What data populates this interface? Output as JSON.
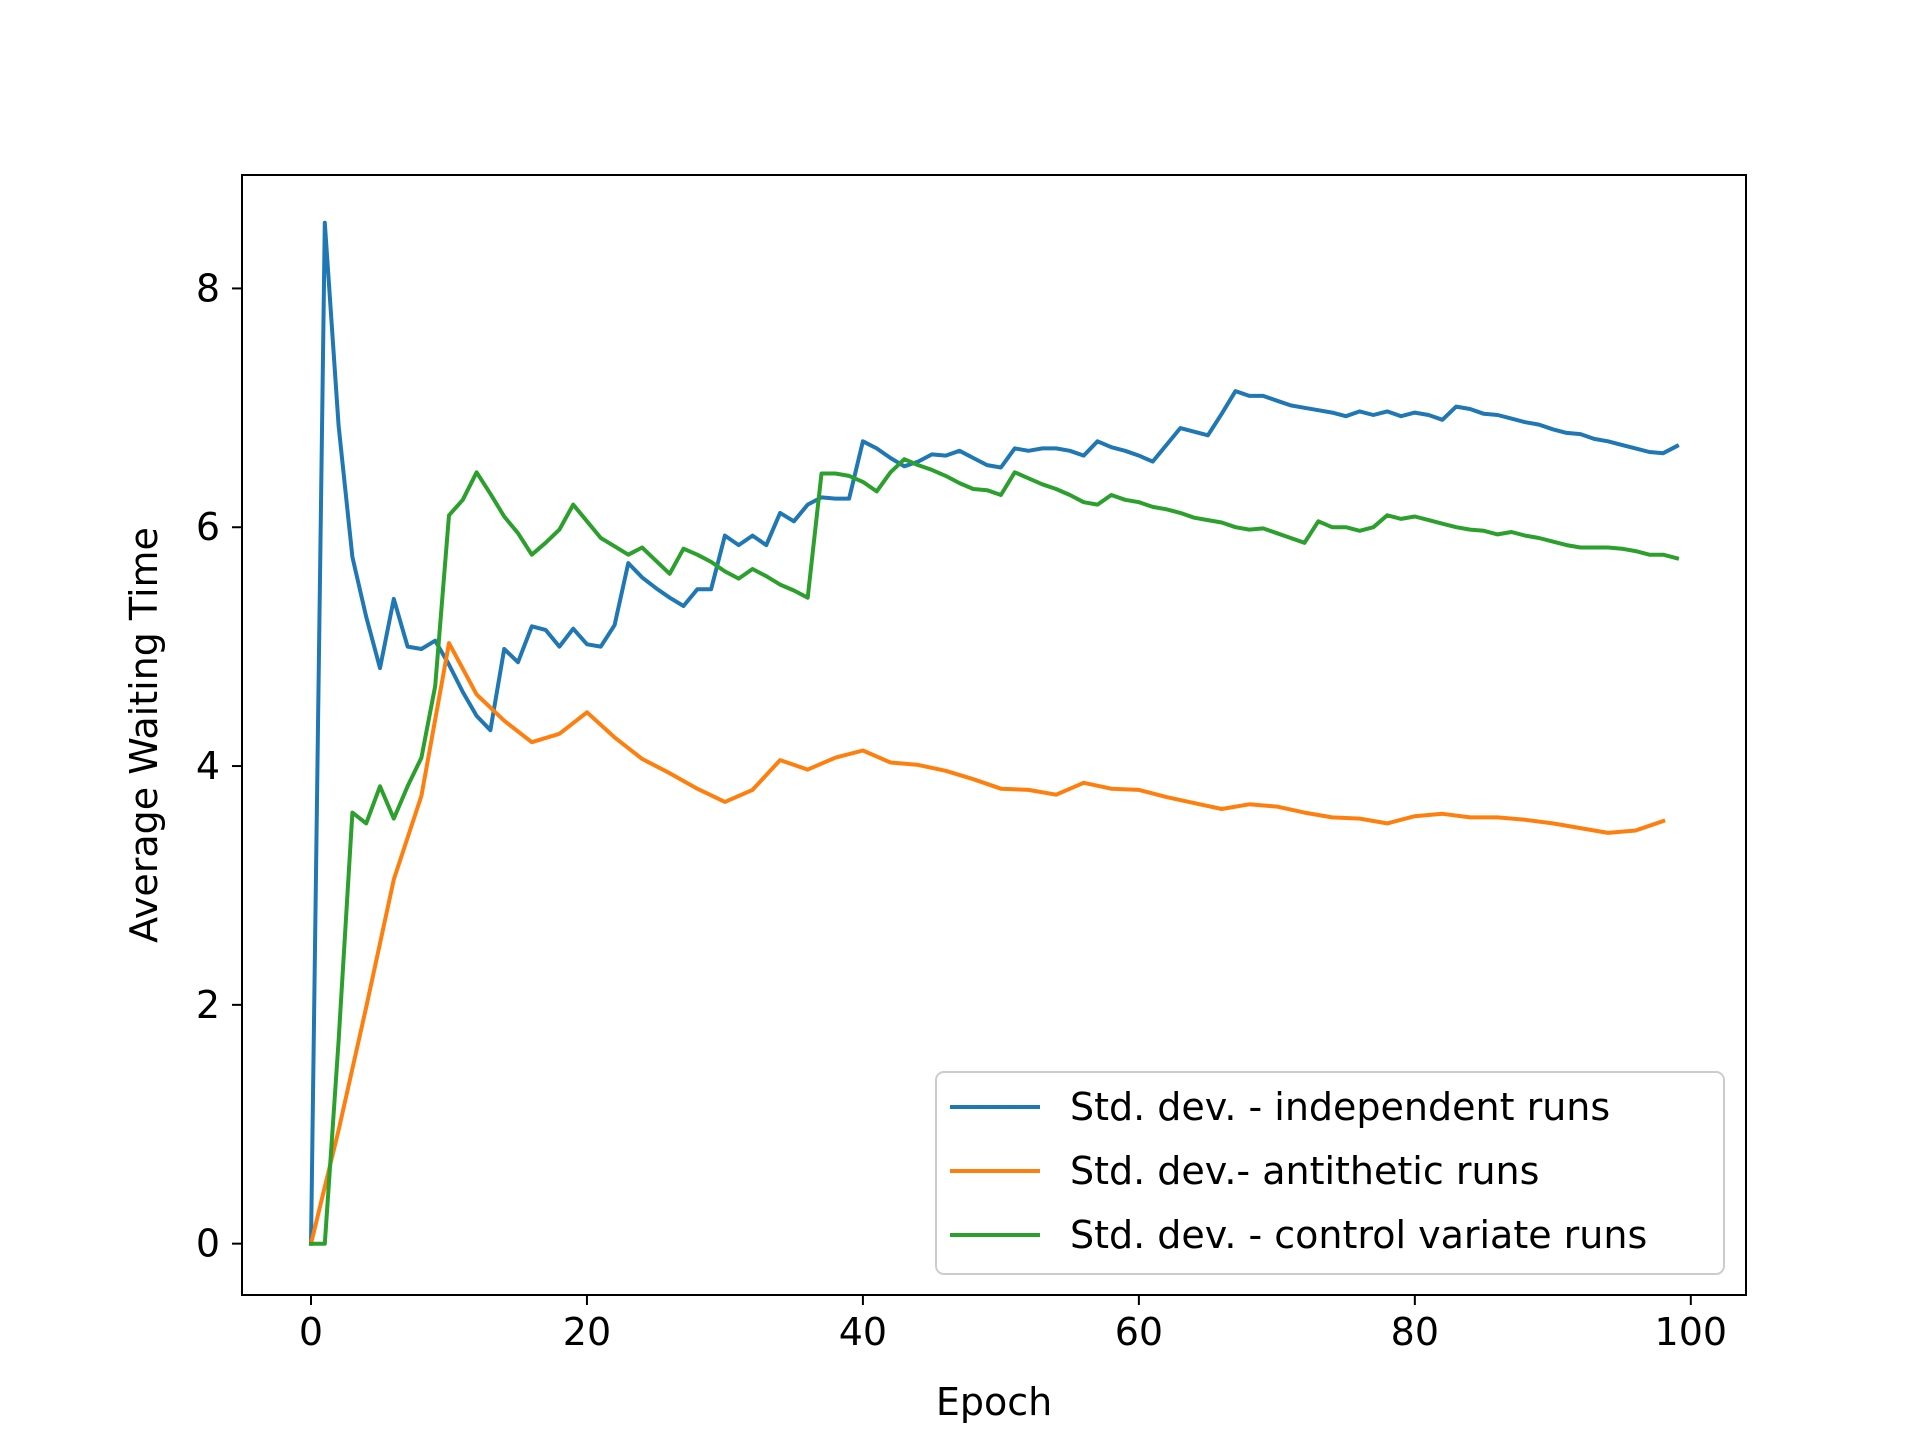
{
  "chart_data": {
    "type": "line",
    "title": "",
    "xlabel": "Epoch",
    "ylabel": "Average Waiting Time",
    "xlim": [
      -5,
      104
    ],
    "ylim": [
      -0.43,
      8.95
    ],
    "xticks": [
      0,
      20,
      40,
      60,
      80,
      100
    ],
    "yticks": [
      0,
      2,
      4,
      6,
      8
    ],
    "xtick_labels": [
      "0",
      "20",
      "40",
      "60",
      "80",
      "100"
    ],
    "ytick_labels": [
      "0",
      "2",
      "4",
      "6",
      "8"
    ],
    "grid": false,
    "legend_position": "lower-right",
    "series": [
      {
        "name": "Std. dev. - independent runs",
        "color": "#1f77b4",
        "x": [
          0,
          1,
          2,
          3,
          4,
          5,
          6,
          7,
          8,
          9,
          10,
          11,
          12,
          13,
          14,
          15,
          16,
          17,
          18,
          19,
          20,
          21,
          22,
          23,
          24,
          25,
          26,
          27,
          28,
          29,
          30,
          31,
          32,
          33,
          34,
          35,
          36,
          37,
          38,
          39,
          40,
          41,
          42,
          43,
          44,
          45,
          46,
          47,
          48,
          49,
          50,
          51,
          52,
          53,
          54,
          55,
          56,
          57,
          58,
          59,
          60,
          61,
          62,
          63,
          64,
          65,
          66,
          67,
          68,
          69,
          70,
          71,
          72,
          73,
          74,
          75,
          76,
          77,
          78,
          79,
          80,
          81,
          82,
          83,
          84,
          85,
          86,
          87,
          88,
          89,
          90,
          91,
          92,
          93,
          94,
          95,
          96,
          97,
          98,
          99
        ],
        "y": [
          0,
          8.55,
          6.85,
          5.75,
          5.25,
          4.82,
          5.4,
          5.0,
          4.98,
          5.05,
          4.85,
          4.62,
          4.42,
          4.3,
          4.98,
          4.87,
          5.17,
          5.14,
          5.0,
          5.15,
          5.02,
          5.0,
          5.18,
          5.7,
          5.58,
          5.49,
          5.41,
          5.34,
          5.48,
          5.48,
          5.93,
          5.85,
          5.93,
          5.85,
          6.12,
          6.05,
          6.19,
          6.25,
          6.24,
          6.24,
          6.72,
          6.66,
          6.58,
          6.51,
          6.55,
          6.61,
          6.6,
          6.64,
          6.58,
          6.52,
          6.5,
          6.66,
          6.64,
          6.66,
          6.66,
          6.64,
          6.6,
          6.72,
          6.67,
          6.64,
          6.6,
          6.55,
          6.69,
          6.83,
          6.8,
          6.77,
          6.95,
          7.14,
          7.1,
          7.1,
          7.06,
          7.02,
          7.0,
          6.98,
          6.96,
          6.93,
          6.97,
          6.94,
          6.97,
          6.93,
          6.96,
          6.94,
          6.9,
          7.01,
          6.99,
          6.95,
          6.94,
          6.91,
          6.88,
          6.86,
          6.82,
          6.79,
          6.78,
          6.74,
          6.72,
          6.69,
          6.66,
          6.63,
          6.62,
          6.68
        ]
      },
      {
        "name": "Std. dev.- antithetic runs",
        "color": "#ff7f0e",
        "x": [
          0,
          2,
          4,
          6,
          8,
          10,
          12,
          14,
          16,
          18,
          20,
          22,
          24,
          26,
          28,
          30,
          32,
          34,
          36,
          38,
          40,
          42,
          44,
          46,
          48,
          50,
          52,
          54,
          56,
          58,
          60,
          62,
          64,
          66,
          68,
          70,
          72,
          74,
          76,
          78,
          80,
          82,
          84,
          86,
          88,
          90,
          92,
          94,
          96,
          98
        ],
        "y": [
          0,
          0.95,
          1.98,
          3.05,
          3.75,
          5.03,
          4.6,
          4.38,
          4.2,
          4.27,
          4.45,
          4.24,
          4.06,
          3.94,
          3.81,
          3.7,
          3.8,
          4.05,
          3.97,
          4.07,
          4.13,
          4.03,
          4.01,
          3.96,
          3.89,
          3.81,
          3.8,
          3.76,
          3.86,
          3.81,
          3.8,
          3.74,
          3.69,
          3.64,
          3.68,
          3.66,
          3.61,
          3.57,
          3.56,
          3.52,
          3.58,
          3.6,
          3.57,
          3.57,
          3.55,
          3.52,
          3.48,
          3.44,
          3.46,
          3.54
        ]
      },
      {
        "name": "Std. dev. - control variate runs",
        "color": "#2ca02c",
        "x": [
          0,
          1,
          2,
          3,
          4,
          5,
          6,
          7,
          8,
          9,
          10,
          11,
          12,
          13,
          14,
          15,
          16,
          17,
          18,
          19,
          20,
          21,
          22,
          23,
          24,
          25,
          26,
          27,
          28,
          29,
          30,
          31,
          32,
          33,
          34,
          35,
          36,
          37,
          38,
          39,
          40,
          41,
          42,
          43,
          44,
          45,
          46,
          47,
          48,
          49,
          50,
          51,
          52,
          53,
          54,
          55,
          56,
          57,
          58,
          59,
          60,
          61,
          62,
          63,
          64,
          65,
          66,
          67,
          68,
          69,
          70,
          71,
          72,
          73,
          74,
          75,
          76,
          77,
          78,
          79,
          80,
          81,
          82,
          83,
          84,
          85,
          86,
          87,
          88,
          89,
          90,
          91,
          92,
          93,
          94,
          95,
          96,
          97,
          98,
          99
        ],
        "y": [
          0,
          0,
          1.7,
          3.61,
          3.52,
          3.83,
          3.56,
          3.83,
          4.07,
          4.67,
          6.1,
          6.23,
          6.46,
          6.28,
          6.09,
          5.95,
          5.77,
          5.87,
          5.98,
          6.19,
          6.05,
          5.91,
          5.84,
          5.77,
          5.83,
          5.72,
          5.61,
          5.82,
          5.77,
          5.71,
          5.63,
          5.57,
          5.65,
          5.59,
          5.52,
          5.47,
          5.41,
          6.45,
          6.45,
          6.43,
          6.38,
          6.3,
          6.46,
          6.57,
          6.52,
          6.48,
          6.43,
          6.37,
          6.32,
          6.31,
          6.27,
          6.46,
          6.41,
          6.36,
          6.32,
          6.27,
          6.21,
          6.19,
          6.27,
          6.23,
          6.21,
          6.17,
          6.15,
          6.12,
          6.08,
          6.06,
          6.04,
          6.0,
          5.98,
          5.99,
          5.95,
          5.91,
          5.87,
          6.05,
          6.0,
          6.0,
          5.97,
          6.0,
          6.1,
          6.07,
          6.09,
          6.06,
          6.03,
          6.0,
          5.98,
          5.97,
          5.94,
          5.96,
          5.93,
          5.91,
          5.88,
          5.85,
          5.83,
          5.83,
          5.83,
          5.82,
          5.8,
          5.77,
          5.77,
          5.74
        ]
      }
    ]
  }
}
